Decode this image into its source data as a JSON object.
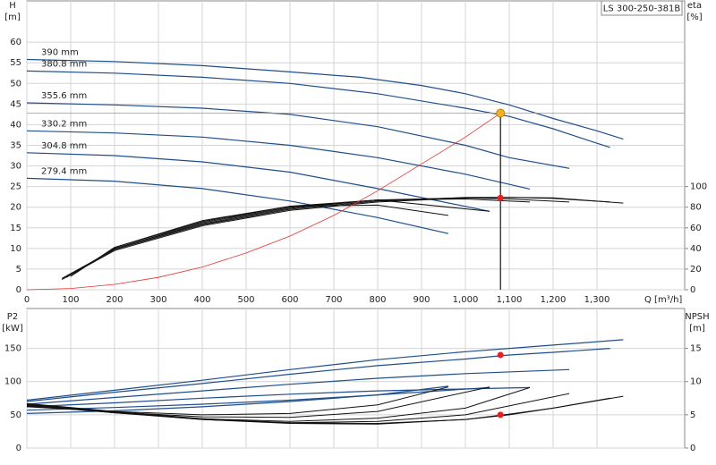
{
  "chart_data": [
    {
      "type": "line",
      "title": "LS 300-250-381B",
      "ylabel": "H",
      "yunit": "[m]",
      "y2label": "eta",
      "y2unit": "[%]",
      "xlabel": "Q [m³/h]",
      "xlim": [
        0,
        1500
      ],
      "ylim": [
        0,
        70
      ],
      "y2lim": [
        0,
        280
      ],
      "grid": true,
      "xtick_labels": true,
      "xticks": [
        0,
        100,
        200,
        300,
        400,
        500,
        600,
        700,
        800,
        900,
        {
          "value": 1000,
          "label": "1,000"
        },
        {
          "value": 1100,
          "label": "1,100"
        },
        {
          "value": 1200,
          "label": "1,200"
        },
        {
          "value": 1300,
          "label": "1,300"
        }
      ],
      "yticks": [
        0,
        5,
        10,
        15,
        20,
        25,
        30,
        35,
        40,
        45,
        50,
        55,
        60
      ],
      "y2ticks": [
        0,
        20,
        40,
        60,
        80,
        100
      ],
      "series": [
        {
          "name": "390 mm",
          "color": "#1f4e8c",
          "x": [
            0,
            200,
            400,
            600,
            760,
            900,
            1000,
            1100,
            1200,
            1300,
            1360
          ],
          "values": [
            55.8,
            55.3,
            54.3,
            52.8,
            51.5,
            49.5,
            47.5,
            44.8,
            41.5,
            38.5,
            36.5
          ]
        },
        {
          "name": "380.8 mm",
          "color": "#1f4e8c",
          "x": [
            0,
            200,
            400,
            600,
            800,
            1000,
            1100,
            1200,
            1300,
            1330
          ],
          "values": [
            53,
            52.5,
            51.5,
            50,
            47.5,
            44,
            42,
            39,
            35.5,
            34.5
          ]
        },
        {
          "name": "355.6 mm",
          "color": "#1f4e8c",
          "x": [
            0,
            200,
            400,
            600,
            800,
            1000,
            1100,
            1237
          ],
          "values": [
            45.3,
            44.8,
            44,
            42.5,
            39.5,
            35,
            32,
            29.4
          ]
        },
        {
          "name": "330.2 mm",
          "color": "#1f4e8c",
          "x": [
            0,
            200,
            400,
            600,
            800,
            1000,
            1147
          ],
          "values": [
            38.5,
            38,
            37,
            35,
            32,
            28,
            24.4
          ]
        },
        {
          "name": "304.8 mm",
          "color": "#1f4e8c",
          "x": [
            0,
            200,
            400,
            600,
            800,
            1055
          ],
          "values": [
            33.2,
            32.5,
            31,
            28.5,
            24.5,
            19
          ]
        },
        {
          "name": "279.4 mm",
          "color": "#1f4e8c",
          "x": [
            0,
            200,
            400,
            600,
            800,
            961
          ],
          "values": [
            27,
            26.3,
            24.5,
            21.5,
            17.5,
            13.6
          ]
        }
      ],
      "eta_series": [
        {
          "color": "#111111",
          "axis": "y2",
          "x": [
            80,
            200,
            400,
            600,
            800,
            1000,
            1100,
            1200,
            1360
          ],
          "values": [
            10,
            38,
            62,
            77,
            85,
            89,
            89.5,
            89,
            84
          ]
        },
        {
          "color": "#111111",
          "axis": "y2",
          "x": [
            80,
            200,
            400,
            600,
            800,
            1000,
            1100,
            1200,
            1330
          ],
          "values": [
            11,
            39,
            63,
            78,
            86,
            89.5,
            89.5,
            88.5,
            85
          ]
        },
        {
          "color": "#111111",
          "axis": "y2",
          "x": [
            90,
            200,
            400,
            600,
            800,
            1000,
            1100,
            1237
          ],
          "values": [
            12,
            40,
            64,
            79,
            87,
            89,
            88,
            85
          ]
        },
        {
          "color": "#111111",
          "axis": "y2",
          "x": [
            90,
            200,
            400,
            600,
            800,
            1000,
            1147
          ],
          "values": [
            12,
            40,
            65,
            80,
            87,
            88,
            85
          ]
        },
        {
          "color": "#111111",
          "axis": "y2",
          "x": [
            100,
            200,
            400,
            600,
            800,
            1055
          ],
          "values": [
            13,
            41,
            66,
            81,
            87,
            76
          ]
        },
        {
          "color": "#111111",
          "axis": "y2",
          "x": [
            100,
            200,
            400,
            600,
            800,
            961
          ],
          "values": [
            13,
            41,
            67,
            81,
            82,
            72
          ]
        }
      ],
      "system_curve": {
        "color": "#e83030",
        "x": [
          0,
          100,
          200,
          300,
          400,
          500,
          600,
          700,
          800,
          900,
          1000,
          1080
        ],
        "values": [
          0,
          0.3,
          1.3,
          3,
          5.5,
          8.9,
          13,
          18,
          24,
          30.5,
          37,
          42.8
        ]
      },
      "operating_point": {
        "q": 1080,
        "h": 42.8,
        "eta": 89
      }
    },
    {
      "type": "line",
      "ylabel": "P2",
      "yunit": "[kW]",
      "y2label": "NPSH",
      "y2unit": "[m]",
      "xlim": [
        0,
        1500
      ],
      "ylim": [
        0,
        210
      ],
      "y2lim": [
        0,
        21
      ],
      "grid": true,
      "xtick_labels": false,
      "xticks": [
        0,
        100,
        200,
        300,
        400,
        500,
        600,
        700,
        800,
        900,
        1000,
        1100,
        1200,
        1300
      ],
      "yticks": [
        0,
        50,
        100,
        150
      ],
      "y2ticks": [
        0,
        5,
        10,
        15
      ],
      "series": [
        {
          "color": "#1f4e8c",
          "x": [
            0,
            200,
            400,
            600,
            800,
            1000,
            1100,
            1200,
            1360
          ],
          "values": [
            72,
            87,
            102,
            118,
            133,
            145,
            150,
            155,
            163
          ]
        },
        {
          "color": "#1f4e8c",
          "x": [
            0,
            200,
            400,
            600,
            800,
            1000,
            1100,
            1200,
            1330
          ],
          "values": [
            70,
            84,
            97,
            111,
            124,
            134,
            140,
            144,
            150
          ]
        },
        {
          "color": "#1f4e8c",
          "x": [
            0,
            200,
            400,
            600,
            800,
            1000,
            1237
          ],
          "values": [
            66,
            76,
            86,
            96,
            105,
            112,
            118
          ]
        },
        {
          "color": "#1f4e8c",
          "x": [
            0,
            200,
            400,
            600,
            800,
            1000,
            1147
          ],
          "values": [
            62,
            68,
            75,
            81,
            86,
            89,
            91
          ]
        },
        {
          "color": "#1f4e8c",
          "x": [
            0,
            200,
            400,
            600,
            800,
            1055
          ],
          "values": [
            57,
            61,
            66,
            72,
            80,
            91
          ]
        },
        {
          "color": "#1f4e8c",
          "x": [
            0,
            200,
            400,
            600,
            800,
            961
          ],
          "values": [
            52,
            56,
            62,
            70,
            80,
            93
          ]
        }
      ],
      "npsh_series": [
        {
          "color": "#111111",
          "axis": "y2",
          "x": [
            0,
            200,
            400,
            600,
            800,
            1000,
            1100,
            1200,
            1360
          ],
          "values": [
            6.7,
            5.5,
            4.4,
            3.8,
            3.7,
            4.3,
            5,
            6,
            7.8
          ]
        },
        {
          "color": "#111111",
          "axis": "y2",
          "x": [
            0,
            200,
            400,
            600,
            800,
            1000,
            1100,
            1200,
            1330
          ],
          "values": [
            6.6,
            5.4,
            4.3,
            3.7,
            3.6,
            4.3,
            5.1,
            6,
            7.5
          ]
        },
        {
          "color": "#111111",
          "axis": "y2",
          "x": [
            0,
            200,
            400,
            600,
            800,
            1000,
            1237
          ],
          "values": [
            6.5,
            5.3,
            4.3,
            3.8,
            4,
            5,
            8.2
          ]
        },
        {
          "color": "#111111",
          "axis": "y2",
          "x": [
            0,
            200,
            400,
            600,
            800,
            1000,
            1147
          ],
          "values": [
            6.4,
            5.3,
            4.4,
            4,
            4.5,
            6,
            9.1
          ]
        },
        {
          "color": "#111111",
          "axis": "y2",
          "x": [
            0,
            200,
            400,
            600,
            800,
            1055
          ],
          "values": [
            6.3,
            5.4,
            4.7,
            4.6,
            5.5,
            9.2
          ]
        },
        {
          "color": "#111111",
          "axis": "y2",
          "x": [
            0,
            200,
            400,
            600,
            800,
            961
          ],
          "values": [
            6.2,
            5.5,
            5,
            5.2,
            6.5,
            9.2
          ]
        }
      ],
      "operating_point": {
        "q": 1080,
        "p2": 140,
        "npsh": 5
      }
    }
  ]
}
